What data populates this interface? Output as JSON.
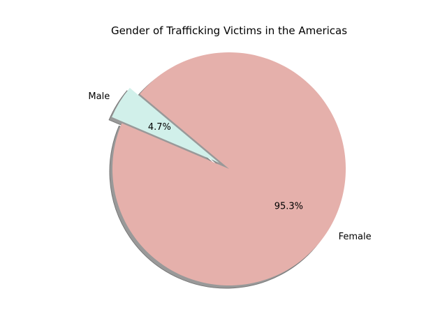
{
  "chart_data": {
    "type": "pie",
    "title": "Gender of Trafficking Victims in the Americas",
    "labels": [
      "Male",
      "Female"
    ],
    "values": [
      4.7,
      95.3
    ],
    "pct_labels": [
      "4.7%",
      "95.3%"
    ],
    "colors": [
      "#d1f0ea",
      "#e5b0ab"
    ],
    "explode": [
      0.1,
      0
    ],
    "shadow": true,
    "start_angle_deg": 140
  }
}
